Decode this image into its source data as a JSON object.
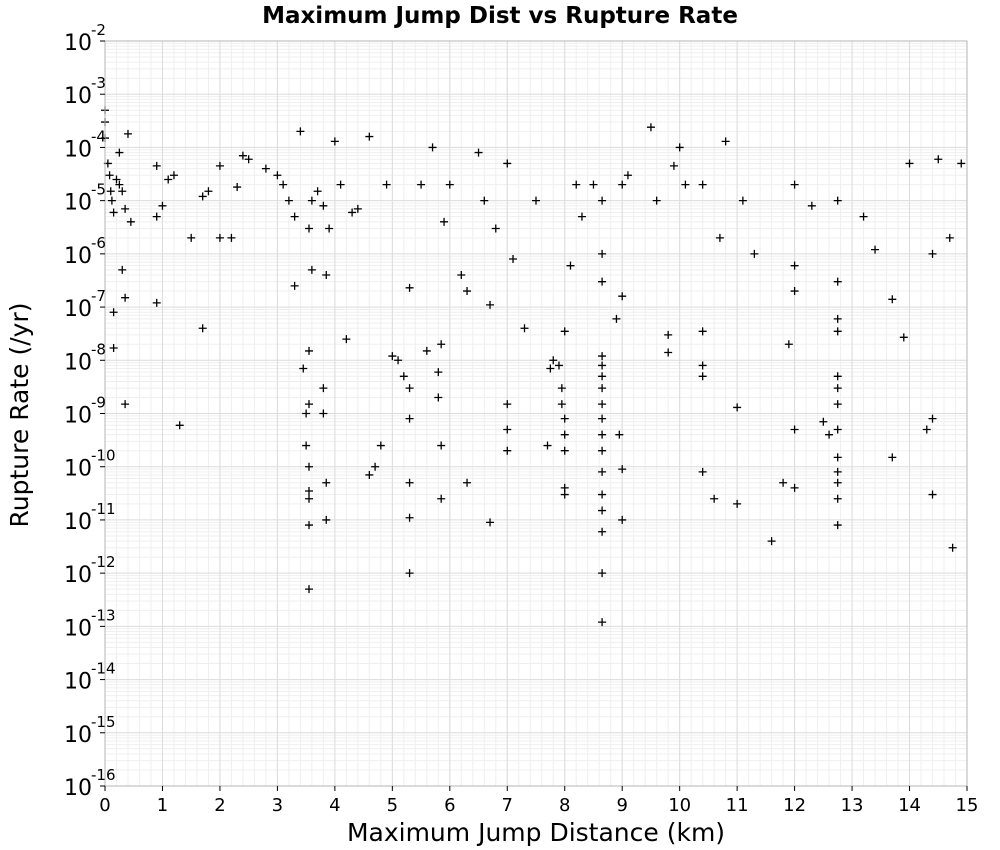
{
  "chart_data": {
    "type": "scatter",
    "title": "Maximum Jump Dist vs Rupture Rate",
    "xlabel": "Maximum Jump Distance (km)",
    "ylabel": "Rupture Rate (/yr)",
    "xlim": [
      0,
      15
    ],
    "ylim_exponents": [
      -16,
      -2
    ],
    "y_scale": "log",
    "grid": true,
    "marker": "plus",
    "marker_color": "#000000",
    "x_ticks": [
      "0",
      "1",
      "2",
      "3",
      "4",
      "5",
      "6",
      "7",
      "8",
      "9",
      "10",
      "11",
      "12",
      "13",
      "14",
      "15"
    ],
    "y_ticks": [
      {
        "base": "10",
        "exp": "-2"
      },
      {
        "base": "10",
        "exp": "-3"
      },
      {
        "base": "10",
        "exp": "-4"
      },
      {
        "base": "10",
        "exp": "-5"
      },
      {
        "base": "10",
        "exp": "-6"
      },
      {
        "base": "10",
        "exp": "-7"
      },
      {
        "base": "10",
        "exp": "-8"
      },
      {
        "base": "10",
        "exp": "-9"
      },
      {
        "base": "10",
        "exp": "-10"
      },
      {
        "base": "10",
        "exp": "-11"
      },
      {
        "base": "10",
        "exp": "-12"
      },
      {
        "base": "10",
        "exp": "-13"
      },
      {
        "base": "10",
        "exp": "-14"
      },
      {
        "base": "10",
        "exp": "-15"
      },
      {
        "base": "10",
        "exp": "-16"
      }
    ],
    "points": [
      [
        0.0,
        0.0005
      ],
      [
        0.0,
        0.0003
      ],
      [
        0.0,
        0.00015
      ],
      [
        0.05,
        5e-05
      ],
      [
        0.08,
        3e-05
      ],
      [
        0.1,
        1.5e-05
      ],
      [
        0.12,
        1e-05
      ],
      [
        0.15,
        6e-06
      ],
      [
        0.2,
        2.5e-05
      ],
      [
        0.25,
        2e-05
      ],
      [
        0.3,
        1.5e-05
      ],
      [
        0.35,
        7e-06
      ],
      [
        0.4,
        0.00018
      ],
      [
        0.45,
        4e-06
      ],
      [
        0.25,
        8e-05
      ],
      [
        0.3,
        5e-07
      ],
      [
        0.35,
        1.5e-07
      ],
      [
        0.15,
        8e-08
      ],
      [
        0.15,
        1.7e-08
      ],
      [
        0.35,
        1.5e-09
      ],
      [
        0.9,
        4.5e-05
      ],
      [
        0.9,
        5e-06
      ],
      [
        0.9,
        1.2e-07
      ],
      [
        1.0,
        8e-06
      ],
      [
        1.1,
        2.5e-05
      ],
      [
        1.2,
        3e-05
      ],
      [
        1.3,
        6e-10
      ],
      [
        1.5,
        2e-06
      ],
      [
        1.7,
        4e-08
      ],
      [
        1.7,
        1.2e-05
      ],
      [
        1.8,
        1.5e-05
      ],
      [
        2.0,
        2e-06
      ],
      [
        2.0,
        4.5e-05
      ],
      [
        2.2,
        2e-06
      ],
      [
        2.3,
        1.8e-05
      ],
      [
        2.4,
        7e-05
      ],
      [
        2.5,
        6e-05
      ],
      [
        2.8,
        4e-05
      ],
      [
        3.0,
        3e-05
      ],
      [
        3.1,
        2e-05
      ],
      [
        3.2,
        1e-05
      ],
      [
        3.3,
        5e-06
      ],
      [
        3.3,
        2.5e-07
      ],
      [
        3.4,
        0.0002
      ],
      [
        3.45,
        7e-09
      ],
      [
        3.5,
        1e-09
      ],
      [
        3.5,
        2.5e-10
      ],
      [
        3.55,
        1.5e-08
      ],
      [
        3.55,
        1.5e-09
      ],
      [
        3.55,
        1e-10
      ],
      [
        3.55,
        3.5e-11
      ],
      [
        3.55,
        2.5e-11
      ],
      [
        3.55,
        8e-12
      ],
      [
        3.55,
        5e-13
      ],
      [
        3.55,
        3e-06
      ],
      [
        3.6,
        1e-05
      ],
      [
        3.6,
        5e-07
      ],
      [
        3.7,
        1.5e-05
      ],
      [
        3.8,
        8e-06
      ],
      [
        3.8,
        3e-09
      ],
      [
        3.8,
        1e-09
      ],
      [
        3.85,
        5e-11
      ],
      [
        3.85,
        1e-11
      ],
      [
        3.85,
        4e-07
      ],
      [
        3.9,
        3e-06
      ],
      [
        4.0,
        0.00013
      ],
      [
        4.1,
        2e-05
      ],
      [
        4.2,
        2.5e-08
      ],
      [
        4.3,
        6e-06
      ],
      [
        4.4,
        7e-06
      ],
      [
        4.6,
        0.00016
      ],
      [
        4.6,
        7e-11
      ],
      [
        4.7,
        1e-10
      ],
      [
        4.8,
        2.5e-10
      ],
      [
        4.9,
        2e-05
      ],
      [
        5.0,
        1.2e-08
      ],
      [
        5.1,
        1e-08
      ],
      [
        5.2,
        5e-09
      ],
      [
        5.3,
        3e-09
      ],
      [
        5.3,
        8e-10
      ],
      [
        5.3,
        5e-11
      ],
      [
        5.3,
        1.1e-11
      ],
      [
        5.3,
        1e-12
      ],
      [
        5.3,
        2.3e-07
      ],
      [
        5.5,
        2e-05
      ],
      [
        5.6,
        1.5e-08
      ],
      [
        5.7,
        0.0001
      ],
      [
        5.8,
        6e-09
      ],
      [
        5.8,
        2e-09
      ],
      [
        5.85,
        2.5e-10
      ],
      [
        5.85,
        2.5e-11
      ],
      [
        5.85,
        2e-08
      ],
      [
        5.9,
        4e-06
      ],
      [
        6.0,
        2e-05
      ],
      [
        6.2,
        4e-07
      ],
      [
        6.3,
        5e-11
      ],
      [
        6.3,
        2e-07
      ],
      [
        6.5,
        8e-05
      ],
      [
        6.6,
        1e-05
      ],
      [
        6.7,
        1.1e-07
      ],
      [
        6.7,
        9e-12
      ],
      [
        6.8,
        3e-06
      ],
      [
        7.0,
        1.5e-09
      ],
      [
        7.0,
        5e-10
      ],
      [
        7.0,
        2e-10
      ],
      [
        7.0,
        5e-05
      ],
      [
        7.1,
        8e-07
      ],
      [
        7.3,
        4e-08
      ],
      [
        7.5,
        1e-05
      ],
      [
        7.7,
        2.5e-10
      ],
      [
        7.75,
        7e-09
      ],
      [
        7.8,
        1e-08
      ],
      [
        7.9,
        8e-09
      ],
      [
        7.95,
        3e-09
      ],
      [
        7.95,
        1.5e-09
      ],
      [
        8.0,
        8e-10
      ],
      [
        8.0,
        4e-10
      ],
      [
        8.0,
        2e-10
      ],
      [
        8.0,
        4e-11
      ],
      [
        8.0,
        3e-11
      ],
      [
        8.0,
        3.5e-08
      ],
      [
        8.1,
        6e-07
      ],
      [
        8.2,
        2e-05
      ],
      [
        8.3,
        5e-06
      ],
      [
        8.5,
        2e-05
      ],
      [
        8.65,
        1.2e-08
      ],
      [
        8.65,
        8e-09
      ],
      [
        8.65,
        5e-09
      ],
      [
        8.65,
        3e-09
      ],
      [
        8.65,
        1.5e-09
      ],
      [
        8.65,
        8e-10
      ],
      [
        8.65,
        4e-10
      ],
      [
        8.65,
        2e-10
      ],
      [
        8.65,
        8e-11
      ],
      [
        8.65,
        3e-11
      ],
      [
        8.65,
        1.5e-11
      ],
      [
        8.65,
        6e-12
      ],
      [
        8.65,
        1e-12
      ],
      [
        8.65,
        1.2e-13
      ],
      [
        8.65,
        1e-06
      ],
      [
        8.65,
        3e-07
      ],
      [
        8.65,
        1e-05
      ],
      [
        8.9,
        6e-08
      ],
      [
        8.95,
        4e-10
      ],
      [
        9.0,
        9e-11
      ],
      [
        9.0,
        1e-11
      ],
      [
        9.0,
        1.6e-07
      ],
      [
        9.0,
        2e-05
      ],
      [
        9.1,
        3e-05
      ],
      [
        9.5,
        0.00024
      ],
      [
        9.6,
        1e-05
      ],
      [
        9.8,
        3e-08
      ],
      [
        9.8,
        1.4e-08
      ],
      [
        9.9,
        4.5e-05
      ],
      [
        10.0,
        0.0001
      ],
      [
        10.1,
        2e-05
      ],
      [
        10.4,
        3.5e-08
      ],
      [
        10.4,
        8e-09
      ],
      [
        10.4,
        5e-09
      ],
      [
        10.4,
        8e-11
      ],
      [
        10.4,
        2e-05
      ],
      [
        10.6,
        2.5e-11
      ],
      [
        10.7,
        2e-06
      ],
      [
        10.8,
        0.00013
      ],
      [
        11.0,
        2e-11
      ],
      [
        11.0,
        1.3e-09
      ],
      [
        11.1,
        1e-05
      ],
      [
        11.3,
        1e-06
      ],
      [
        11.6,
        4e-12
      ],
      [
        11.8,
        5e-11
      ],
      [
        11.9,
        2e-08
      ],
      [
        12.0,
        4e-11
      ],
      [
        12.0,
        5e-10
      ],
      [
        12.0,
        6e-07
      ],
      [
        12.0,
        2e-07
      ],
      [
        12.0,
        2e-05
      ],
      [
        12.3,
        8e-06
      ],
      [
        12.5,
        7e-10
      ],
      [
        12.6,
        4e-10
      ],
      [
        12.75,
        6e-08
      ],
      [
        12.75,
        3.5e-08
      ],
      [
        12.75,
        5e-09
      ],
      [
        12.75,
        3e-09
      ],
      [
        12.75,
        1.5e-09
      ],
      [
        12.75,
        5e-10
      ],
      [
        12.75,
        1.5e-10
      ],
      [
        12.75,
        8e-11
      ],
      [
        12.75,
        5e-11
      ],
      [
        12.75,
        2.5e-11
      ],
      [
        12.75,
        8e-12
      ],
      [
        12.75,
        3e-07
      ],
      [
        12.75,
        1e-05
      ],
      [
        13.2,
        5e-06
      ],
      [
        13.4,
        1.2e-06
      ],
      [
        13.7,
        1.5e-10
      ],
      [
        13.7,
        1.4e-07
      ],
      [
        13.9,
        2.7e-08
      ],
      [
        14.0,
        5e-05
      ],
      [
        14.3,
        5e-10
      ],
      [
        14.4,
        8e-10
      ],
      [
        14.4,
        3e-11
      ],
      [
        14.4,
        1e-06
      ],
      [
        14.5,
        6e-05
      ],
      [
        14.7,
        2e-06
      ],
      [
        14.75,
        3e-12
      ],
      [
        14.9,
        5e-05
      ]
    ]
  }
}
